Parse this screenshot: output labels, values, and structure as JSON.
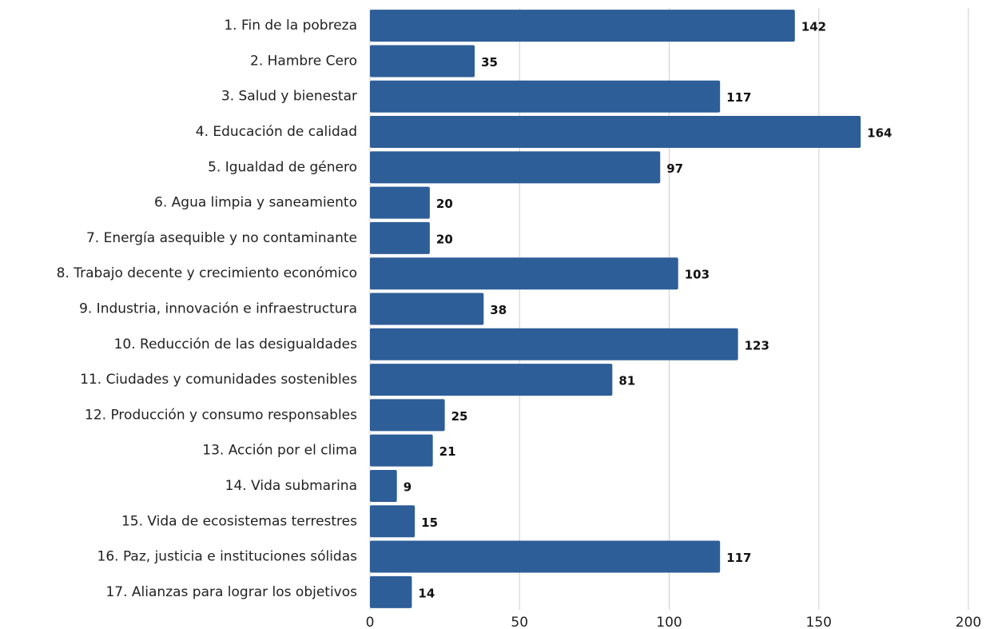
{
  "chart_data": {
    "type": "barh",
    "categories": [
      "1. Fin de la pobreza",
      "2. Hambre Cero",
      "3. Salud y bienestar",
      "4. Educación de calidad",
      "5. Igualdad de género",
      "6. Agua limpia y saneamiento",
      "7. Energía asequible y no contaminante",
      "8. Trabajo decente y crecimiento económico",
      "9. Industria, innovación e infraestructura",
      "10. Reducción de las desigualdades",
      "11. Ciudades y comunidades sostenibles",
      "12. Producción y consumo responsables",
      "13. Acción por el clima",
      "14. Vida submarina",
      "15. Vida de ecosistemas terrestres",
      "16. Paz, justicia e instituciones sólidas",
      "17. Alianzas para lograr los objetivos"
    ],
    "values": [
      142,
      35,
      117,
      164,
      97,
      20,
      20,
      103,
      38,
      123,
      81,
      25,
      21,
      9,
      15,
      117,
      14
    ],
    "color": "#2e5e98",
    "xlim": [
      0,
      200
    ],
    "xticks": [
      0,
      50,
      100,
      150,
      200
    ],
    "grid": true
  }
}
